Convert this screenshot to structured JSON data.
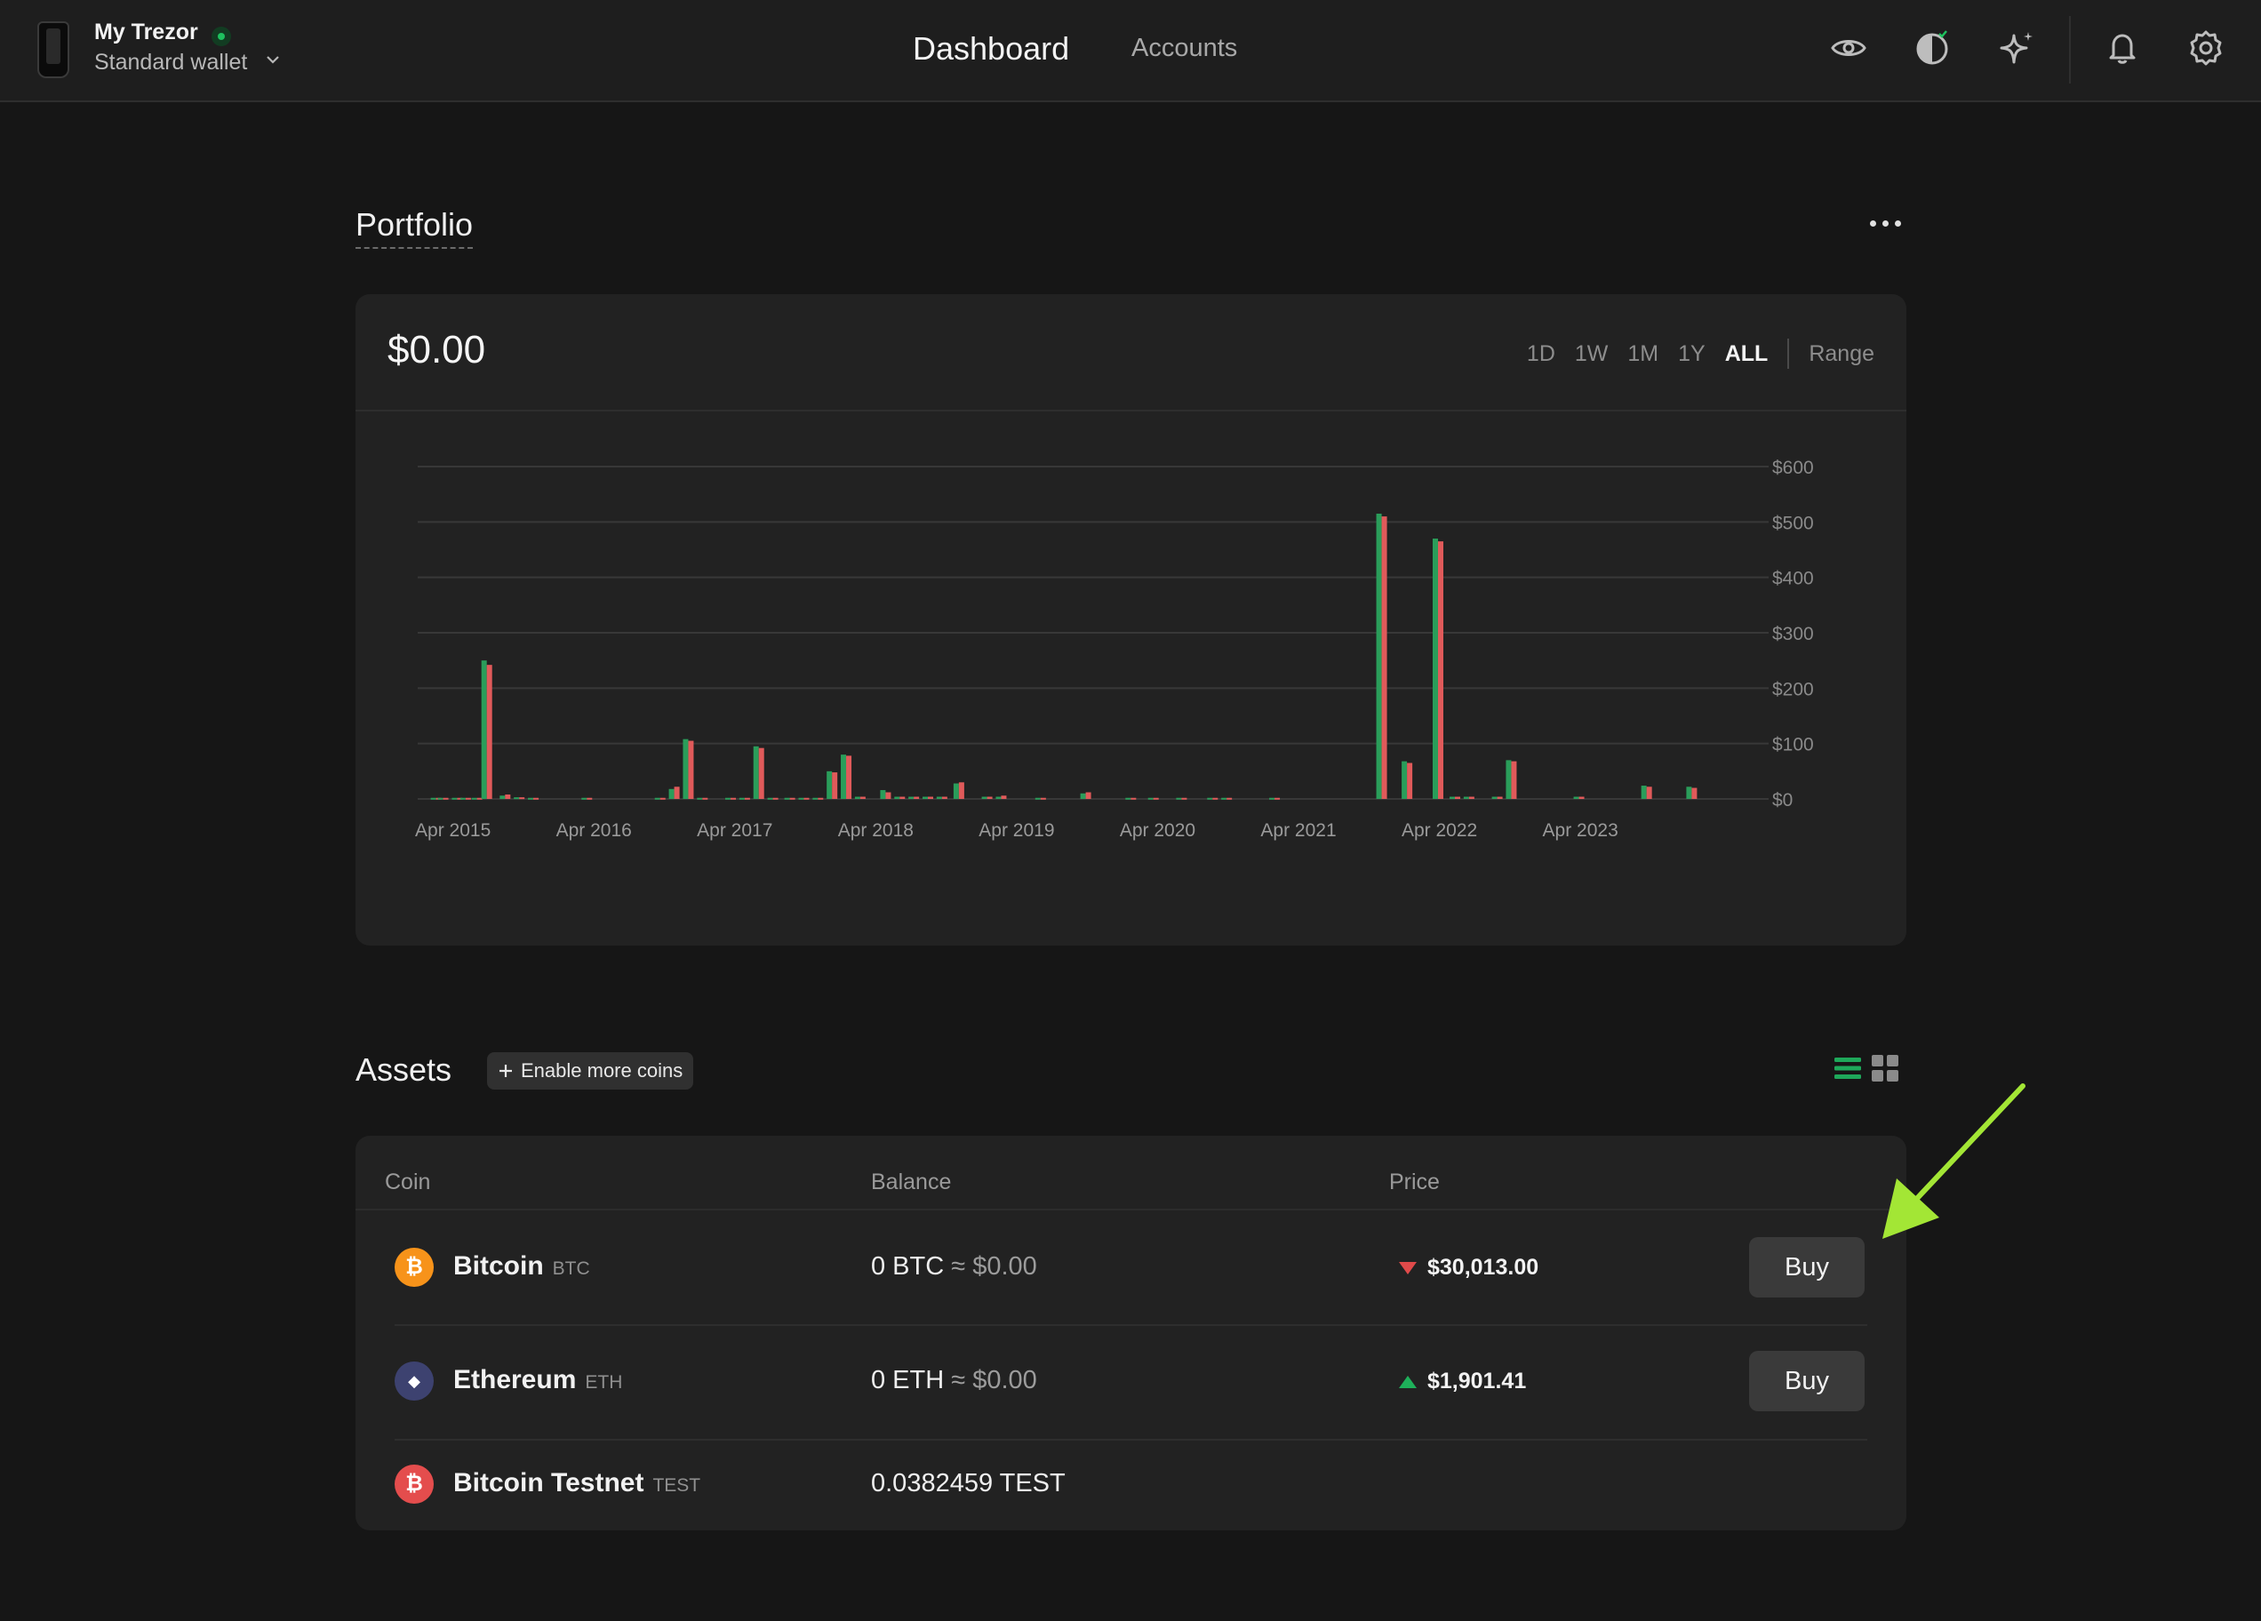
{
  "header": {
    "wallet_name": "My Trezor",
    "wallet_type": "Standard wallet",
    "nav": {
      "dashboard": "Dashboard",
      "accounts": "Accounts"
    },
    "icons": [
      "eye-icon",
      "discreet-mode-icon",
      "sparkle-icon",
      "bell-icon",
      "gear-icon"
    ]
  },
  "portfolio": {
    "title": "Portfolio",
    "total": "$0.00",
    "ranges": [
      "1D",
      "1W",
      "1M",
      "1Y",
      "ALL"
    ],
    "active_range": "ALL",
    "range_custom": "Range"
  },
  "chart_data": {
    "type": "bar",
    "x_ticks": [
      "Apr 2015",
      "Apr 2016",
      "Apr 2017",
      "Apr 2018",
      "Apr 2019",
      "Apr 2020",
      "Apr 2021",
      "Apr 2022",
      "Apr 2023"
    ],
    "y_ticks": [
      "$0",
      "$100",
      "$200",
      "$300",
      "$400",
      "$500",
      "$600"
    ],
    "ylim": [
      0,
      600
    ],
    "series": [
      {
        "color": "#2a9d5a"
      },
      {
        "color": "#e05a5a"
      }
    ],
    "bars": [
      {
        "t": 2015.13,
        "a": 2,
        "b": 2
      },
      {
        "t": 2015.18,
        "a": 2,
        "b": 2
      },
      {
        "t": 2015.28,
        "a": 2,
        "b": 2
      },
      {
        "t": 2015.34,
        "a": 2,
        "b": 2
      },
      {
        "t": 2015.42,
        "a": 2,
        "b": 2
      },
      {
        "t": 2015.49,
        "a": 250,
        "b": 242
      },
      {
        "t": 2015.62,
        "a": 6,
        "b": 8
      },
      {
        "t": 2015.72,
        "a": 3,
        "b": 3
      },
      {
        "t": 2015.82,
        "a": 2,
        "b": 2
      },
      {
        "t": 2016.2,
        "a": 2,
        "b": 2
      },
      {
        "t": 2016.72,
        "a": 2,
        "b": 2
      },
      {
        "t": 2016.82,
        "a": 18,
        "b": 22
      },
      {
        "t": 2016.92,
        "a": 108,
        "b": 105
      },
      {
        "t": 2017.02,
        "a": 2,
        "b": 2
      },
      {
        "t": 2017.22,
        "a": 2,
        "b": 2
      },
      {
        "t": 2017.32,
        "a": 2,
        "b": 2
      },
      {
        "t": 2017.42,
        "a": 95,
        "b": 92
      },
      {
        "t": 2017.52,
        "a": 2,
        "b": 2
      },
      {
        "t": 2017.64,
        "a": 2,
        "b": 2
      },
      {
        "t": 2017.74,
        "a": 2,
        "b": 2
      },
      {
        "t": 2017.84,
        "a": 2,
        "b": 2
      },
      {
        "t": 2017.94,
        "a": 50,
        "b": 48
      },
      {
        "t": 2018.04,
        "a": 80,
        "b": 78
      },
      {
        "t": 2018.14,
        "a": 4,
        "b": 4
      },
      {
        "t": 2018.32,
        "a": 16,
        "b": 12
      },
      {
        "t": 2018.42,
        "a": 4,
        "b": 4
      },
      {
        "t": 2018.52,
        "a": 4,
        "b": 4
      },
      {
        "t": 2018.62,
        "a": 4,
        "b": 4
      },
      {
        "t": 2018.72,
        "a": 4,
        "b": 4
      },
      {
        "t": 2018.84,
        "a": 28,
        "b": 30
      },
      {
        "t": 2019.04,
        "a": 4,
        "b": 4
      },
      {
        "t": 2019.14,
        "a": 4,
        "b": 6
      },
      {
        "t": 2019.42,
        "a": 2,
        "b": 2
      },
      {
        "t": 2019.74,
        "a": 10,
        "b": 12
      },
      {
        "t": 2020.06,
        "a": 2,
        "b": 2
      },
      {
        "t": 2020.22,
        "a": 2,
        "b": 2
      },
      {
        "t": 2020.42,
        "a": 2,
        "b": 2
      },
      {
        "t": 2020.64,
        "a": 2,
        "b": 2
      },
      {
        "t": 2020.74,
        "a": 2,
        "b": 2
      },
      {
        "t": 2021.08,
        "a": 2,
        "b": 2
      },
      {
        "t": 2021.84,
        "a": 515,
        "b": 510
      },
      {
        "t": 2022.02,
        "a": 68,
        "b": 65
      },
      {
        "t": 2022.24,
        "a": 470,
        "b": 465
      },
      {
        "t": 2022.36,
        "a": 4,
        "b": 4
      },
      {
        "t": 2022.46,
        "a": 4,
        "b": 4
      },
      {
        "t": 2022.66,
        "a": 4,
        "b": 4
      },
      {
        "t": 2022.76,
        "a": 70,
        "b": 68
      },
      {
        "t": 2023.24,
        "a": 4,
        "b": 4
      },
      {
        "t": 2023.72,
        "a": 24,
        "b": 22
      },
      {
        "t": 2024.04,
        "a": 22,
        "b": 20
      }
    ],
    "x_start": 2015.0,
    "x_end": 2024.46
  },
  "assets": {
    "title": "Assets",
    "enable_btn": "Enable more coins",
    "columns": {
      "coin": "Coin",
      "balance": "Balance",
      "price": "Price"
    },
    "rows": [
      {
        "name": "Bitcoin",
        "symbol": "BTC",
        "balance": "0 BTC",
        "approx": "≈",
        "fiat": "$0.00",
        "price": "$30,013.00",
        "trend": "down",
        "buy": "Buy",
        "icon": "bitcoin-icon",
        "icon_glyph": "₿",
        "icon_color": "#f7931a"
      },
      {
        "name": "Ethereum",
        "symbol": "ETH",
        "balance": "0 ETH",
        "approx": "≈",
        "fiat": "$0.00",
        "price": "$1,901.41",
        "trend": "up",
        "buy": "Buy",
        "icon": "ethereum-icon",
        "icon_glyph": "◆",
        "icon_color": "#454a75"
      },
      {
        "name": "Bitcoin Testnet",
        "symbol": "TEST",
        "balance": "0.0382459 TEST",
        "icon": "bitcoin-testnet-icon",
        "icon_glyph": "₿",
        "icon_color": "#e44d4d"
      }
    ]
  },
  "colors": {
    "accent_green": "#1ec15e",
    "annotation_arrow": "#a3e635"
  }
}
